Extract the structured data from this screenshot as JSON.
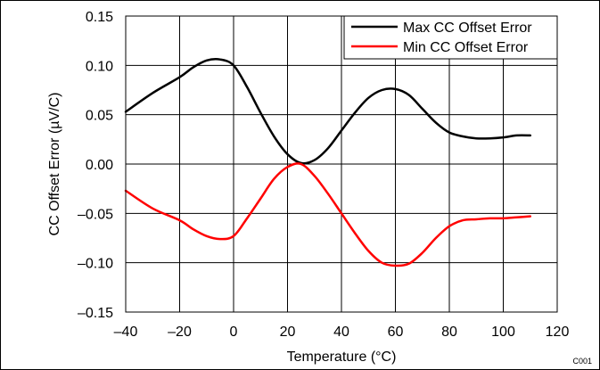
{
  "chart_data": {
    "type": "line",
    "xlabel": "Temperature (°C)",
    "ylabel": "CC Offset Error (µV/C)",
    "xlim": [
      -40,
      120
    ],
    "ylim": [
      -0.15,
      0.15
    ],
    "xticks": [
      -40,
      -20,
      0,
      20,
      40,
      60,
      80,
      100,
      120
    ],
    "yticks": [
      -0.15,
      -0.1,
      -0.05,
      0.0,
      0.05,
      0.1,
      0.15
    ],
    "xtick_labels": [
      "–40",
      "–20",
      "0",
      "20",
      "40",
      "60",
      "80",
      "100",
      "120"
    ],
    "ytick_labels": [
      "–0.15",
      "–0.10",
      "–0.05",
      "0.00",
      "0.05",
      "0.10",
      "0.15"
    ],
    "grid": true,
    "legend_position": "top-right",
    "series": [
      {
        "name": "Max CC Offset Error",
        "color": "#000000",
        "x": [
          -40,
          -30,
          -20,
          -15,
          -10,
          -5,
          0,
          5,
          10,
          15,
          20,
          25,
          30,
          35,
          40,
          45,
          50,
          55,
          60,
          65,
          70,
          75,
          80,
          85,
          90,
          95,
          100,
          105,
          110
        ],
        "y": [
          0.053,
          0.072,
          0.088,
          0.098,
          0.105,
          0.106,
          0.1,
          0.078,
          0.052,
          0.028,
          0.01,
          0.001,
          0.004,
          0.016,
          0.034,
          0.052,
          0.067,
          0.075,
          0.076,
          0.07,
          0.056,
          0.042,
          0.032,
          0.028,
          0.026,
          0.026,
          0.027,
          0.029,
          0.029
        ]
      },
      {
        "name": "Min CC Offset Error",
        "color": "#ff0000",
        "x": [
          -40,
          -30,
          -20,
          -15,
          -10,
          -5,
          0,
          5,
          10,
          15,
          20,
          25,
          30,
          35,
          40,
          45,
          50,
          55,
          60,
          65,
          70,
          75,
          80,
          85,
          90,
          95,
          100,
          105,
          110
        ],
        "y": [
          -0.027,
          -0.045,
          -0.057,
          -0.066,
          -0.073,
          -0.076,
          -0.073,
          -0.055,
          -0.035,
          -0.015,
          -0.003,
          0.0,
          -0.012,
          -0.03,
          -0.05,
          -0.07,
          -0.088,
          -0.1,
          -0.103,
          -0.101,
          -0.09,
          -0.075,
          -0.063,
          -0.057,
          -0.056,
          -0.055,
          -0.055,
          -0.054,
          -0.053
        ]
      }
    ],
    "corner_code": "C001"
  }
}
